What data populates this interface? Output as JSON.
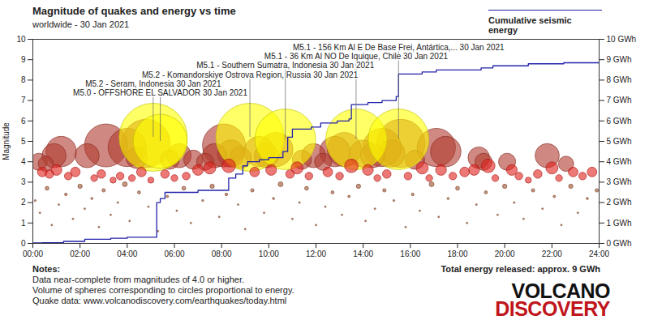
{
  "chart_data": {
    "type": "scatter",
    "title": "Magnitude of quakes and energy vs time",
    "subtitle": "worldwide - 30 Jan 2021",
    "y_label": "Magnitude",
    "xlim": [
      0,
      24
    ],
    "xticks": [
      {
        "value": 0,
        "label": "00:00"
      },
      {
        "value": 2,
        "label": "02:00"
      },
      {
        "value": 4,
        "label": "04:00"
      },
      {
        "value": 6,
        "label": "06:00"
      },
      {
        "value": 8,
        "label": "08:00"
      },
      {
        "value": 10,
        "label": "10:00"
      },
      {
        "value": 12,
        "label": "12:00"
      },
      {
        "value": 14,
        "label": "14:00"
      },
      {
        "value": 16,
        "label": "16:00"
      },
      {
        "value": 18,
        "label": "18:00"
      },
      {
        "value": 20,
        "label": "20:00"
      },
      {
        "value": 22,
        "label": "22:00"
      },
      {
        "value": 24,
        "label": "24:00"
      }
    ],
    "ylim": [
      0,
      10
    ],
    "yticks": [
      0,
      1,
      2,
      3,
      4,
      5,
      6,
      7,
      8,
      9,
      10
    ],
    "y2lim": [
      0,
      10
    ],
    "y2ticks": [
      {
        "value": 0,
        "label": "0 GWh"
      },
      {
        "value": 1,
        "label": "1 GWh"
      },
      {
        "value": 2,
        "label": "2 GWh"
      },
      {
        "value": 3,
        "label": "3 GWh"
      },
      {
        "value": 4,
        "label": "4 GWh"
      },
      {
        "value": 5,
        "label": "5 GWh"
      },
      {
        "value": 6,
        "label": "6 GWh"
      },
      {
        "value": 7,
        "label": "7 GWh"
      },
      {
        "value": 8,
        "label": "8 GWh"
      },
      {
        "value": 9,
        "label": "9 GWh"
      },
      {
        "value": 10,
        "label": "10 GWh"
      }
    ],
    "grid": false,
    "series": [
      {
        "color": "#b03a2e",
        "x": [
          0.25,
          0.55,
          0.9,
          1.2,
          2.3,
          3.1,
          4.0,
          4.4,
          4.8,
          5.8,
          6.2,
          6.8,
          7.3,
          7.7,
          8.1,
          8.4,
          8.8,
          9.6,
          9.9,
          10.3,
          11.4,
          11.9,
          12.3,
          12.8,
          13.2,
          14.0,
          14.4,
          14.8,
          15.2,
          15.6,
          16.2,
          17.1,
          17.5,
          18.9,
          19.1,
          20.1,
          21.8,
          22.6
        ],
        "values": [
          4.0,
          3.9,
          4.3,
          4.5,
          4.3,
          4.8,
          4.7,
          4.2,
          4.9,
          4.1,
          4.3,
          4.1,
          4.0,
          4.3,
          4.8,
          4.4,
          4.2,
          4.5,
          4.3,
          4.6,
          4.1,
          4.3,
          4.0,
          4.5,
          4.6,
          4.4,
          4.3,
          4.7,
          4.4,
          4.9,
          4.1,
          4.7,
          4.5,
          4.2,
          4.0,
          4.0,
          4.3,
          3.9
        ]
      },
      {
        "color": "#ffff00",
        "x": [
          5.1,
          5.4,
          9.2,
          10.7,
          13.7,
          15.5
        ],
        "values": [
          5.2,
          5.0,
          5.2,
          5.1,
          5.1,
          5.1
        ]
      },
      {
        "color": "#e0201b",
        "x": [
          0.4,
          0.7,
          1.0,
          1.5,
          1.8,
          2.6,
          2.9,
          3.4,
          3.7,
          4.2,
          4.6,
          5.0,
          5.6,
          6.0,
          6.5,
          7.0,
          7.5,
          8.3,
          9.4,
          10.1,
          10.9,
          11.2,
          11.7,
          12.5,
          13.0,
          13.5,
          14.2,
          14.6,
          15.0,
          15.9,
          16.5,
          16.8,
          17.3,
          17.8,
          18.3,
          18.7,
          19.3,
          19.6,
          20.3,
          20.6,
          21.0,
          21.4,
          22.0,
          22.3,
          22.9,
          23.3,
          23.7
        ],
        "values": [
          3.5,
          3.4,
          3.6,
          3.3,
          3.5,
          3.2,
          3.4,
          3.1,
          3.3,
          3.2,
          3.5,
          3.1,
          3.4,
          3.2,
          3.3,
          3.6,
          3.7,
          3.8,
          3.5,
          3.6,
          3.4,
          3.7,
          3.3,
          3.5,
          3.3,
          3.8,
          3.6,
          3.2,
          3.4,
          3.3,
          3.7,
          3.2,
          3.6,
          3.3,
          3.5,
          3.6,
          3.8,
          3.2,
          3.6,
          3.3,
          3.1,
          3.4,
          3.7,
          3.2,
          3.5,
          3.3,
          3.5
        ]
      },
      {
        "color": "#a0522d",
        "x": [
          0.1,
          0.3,
          0.6,
          0.8,
          1.1,
          1.4,
          1.7,
          2.0,
          2.2,
          2.5,
          2.8,
          3.0,
          3.3,
          3.6,
          3.9,
          4.1,
          4.5,
          4.9,
          5.3,
          5.7,
          6.1,
          6.4,
          6.7,
          7.2,
          7.6,
          7.9,
          8.2,
          8.7,
          9.0,
          9.3,
          9.8,
          10.2,
          10.5,
          11.0,
          11.3,
          11.6,
          12.0,
          12.4,
          12.7,
          13.1,
          13.4,
          13.8,
          14.1,
          14.5,
          14.9,
          15.3,
          15.8,
          16.1,
          16.4,
          16.9,
          17.2,
          17.6,
          18.0,
          18.4,
          18.8,
          19.2,
          19.7,
          20.0,
          20.4,
          20.8,
          21.2,
          21.6,
          22.1,
          22.4,
          22.8,
          23.1,
          23.5,
          23.9
        ],
        "values": [
          2.1,
          1.5,
          2.7,
          0.9,
          1.9,
          2.4,
          1.2,
          2.8,
          1.7,
          2.2,
          0.8,
          2.6,
          1.4,
          2.0,
          2.9,
          1.1,
          2.5,
          1.8,
          0.6,
          2.3,
          1.6,
          2.7,
          1.0,
          2.1,
          2.8,
          1.3,
          2.4,
          1.9,
          0.7,
          2.6,
          1.5,
          2.2,
          2.9,
          1.2,
          2.0,
          2.7,
          0.9,
          1.8,
          2.5,
          1.4,
          2.3,
          2.8,
          1.1,
          1.7,
          2.6,
          2.1,
          0.8,
          2.4,
          1.6,
          2.9,
          1.3,
          2.2,
          2.7,
          1.0,
          1.9,
          2.5,
          1.4,
          2.8,
          2.0,
          1.2,
          2.6,
          1.7,
          2.3,
          0.9,
          2.8,
          1.5,
          2.2,
          2.6
        ]
      },
      {
        "name": "Cumulative seismic energy",
        "type": "line",
        "axis": "y2",
        "color": "#2222aa",
        "x": [
          0,
          0.4,
          1.3,
          2.2,
          3.3,
          4.0,
          5.2,
          5.25,
          5.4,
          5.6,
          7.0,
          8.2,
          8.3,
          8.6,
          8.9,
          9.1,
          9.6,
          10.0,
          10.6,
          10.8,
          11.0,
          11.8,
          12.2,
          12.9,
          13.4,
          13.5,
          14.2,
          14.8,
          15.4,
          15.5,
          16.5,
          17.1,
          19.0,
          19.5,
          21.0,
          22.5,
          24
        ],
        "values": [
          0.02,
          0.03,
          0.1,
          0.2,
          0.25,
          0.3,
          0.3,
          2.0,
          2.2,
          2.5,
          2.6,
          2.6,
          3.2,
          3.4,
          3.8,
          4.0,
          4.1,
          4.2,
          4.5,
          5.2,
          5.6,
          5.7,
          5.9,
          6.0,
          6.1,
          6.8,
          6.9,
          7.0,
          7.2,
          8.3,
          8.4,
          8.5,
          8.6,
          8.7,
          8.8,
          8.85,
          8.9
        ]
      }
    ],
    "annotations": [
      {
        "text": "M5.1 - 156 Km Al E De Base Frei, Antártica,...",
        "date": "30 Jan 2021",
        "x": 15.5,
        "y": 5.1
      },
      {
        "text": "M5.1 - 36 Km Al NO De Iquique, Chile",
        "date": "30 Jan 2021",
        "x": 13.7,
        "y": 5.1
      },
      {
        "text": "M5.1 - Southern Sumatra, Indonesia",
        "date": "30 Jan 2021",
        "x": 10.7,
        "y": 5.1
      },
      {
        "text": "M5.2 - Komandorskiye Ostrova Region, Russia",
        "date": "30 Jan 2021",
        "x": 9.2,
        "y": 5.2
      },
      {
        "text": "M5.2 - Seram, Indonesia",
        "date": "30 Jan 2021",
        "x": 5.1,
        "y": 5.2
      },
      {
        "text": "M5.0 - OFFSHORE EL SALVADOR",
        "date": "30 Jan 2021",
        "x": 5.4,
        "y": 5.0
      }
    ],
    "notes": [
      "Notes:",
      "Data near-complete from magnitudes of 4.0 or higher.",
      "Volume of spheres corresponding to circles proportional to energy.",
      "Quake data: www.volcanodiscovery.com/earthquakes/today.html"
    ],
    "total": "Total energy released: approx. 9 GWh",
    "logo": [
      "VOLCANO",
      "DISCOVERY"
    ]
  }
}
